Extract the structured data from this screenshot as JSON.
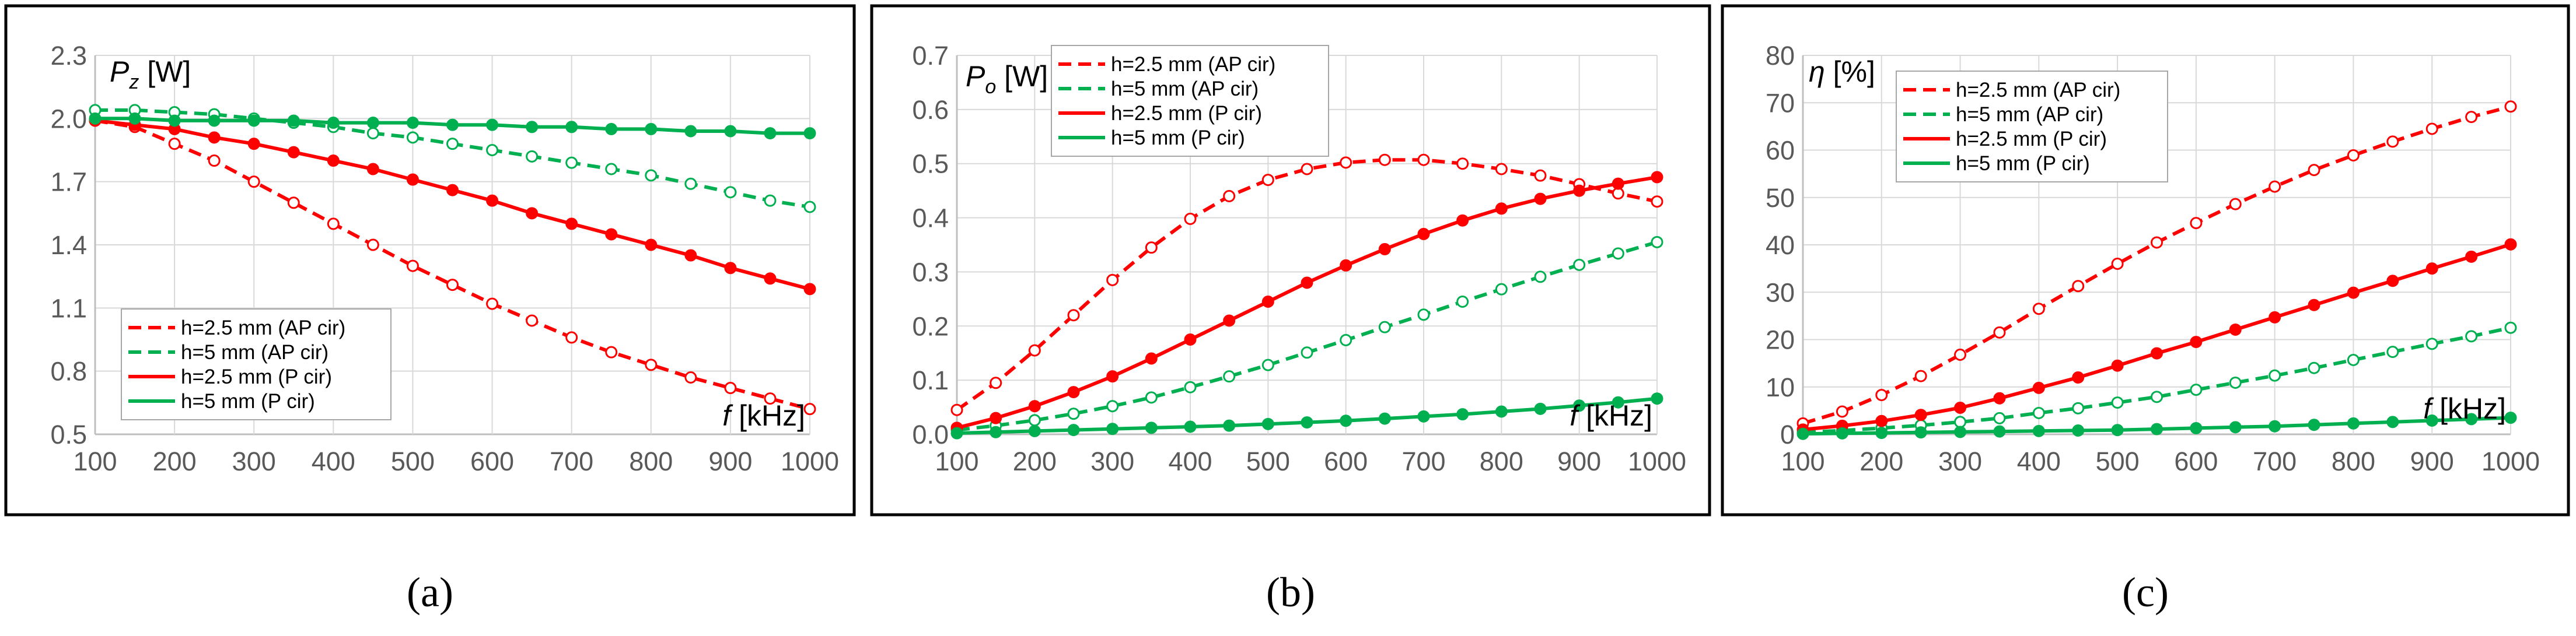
{
  "figure": {
    "captions": [
      "(a)",
      "(b)",
      "(c)"
    ]
  },
  "chart_data": [
    {
      "type": "line",
      "panel": "a",
      "ylabel_symbol": "P",
      "ylabel_sub": "z",
      "ylabel_unit": " [W]",
      "xlabel_symbol": "f",
      "xlabel_unit": " [kHz]",
      "ylim": [
        0.5,
        2.3
      ],
      "xlim": [
        100,
        1000
      ],
      "yticks": [
        "0.5",
        "0.8",
        "1.1",
        "1.4",
        "1.7",
        "2.0",
        "2.3"
      ],
      "xticks": [
        "100",
        "200",
        "300",
        "400",
        "500",
        "600",
        "700",
        "800",
        "900",
        "1000"
      ],
      "legend_position": "bottom-left",
      "x": [
        100,
        150,
        200,
        250,
        300,
        350,
        400,
        450,
        500,
        550,
        600,
        650,
        700,
        750,
        800,
        850,
        900,
        950,
        1000
      ],
      "series": [
        {
          "name": "h=2.5 mm (AP cir)",
          "color": "#ff0000",
          "dashed": true,
          "values": [
            1.99,
            1.96,
            1.88,
            1.8,
            1.7,
            1.6,
            1.5,
            1.4,
            1.3,
            1.21,
            1.12,
            1.04,
            0.96,
            0.89,
            0.83,
            0.77,
            0.72,
            0.67,
            0.62
          ]
        },
        {
          "name": "h=5 mm (AP cir)",
          "color": "#00b050",
          "dashed": true,
          "values": [
            2.04,
            2.04,
            2.03,
            2.02,
            2.0,
            1.98,
            1.96,
            1.93,
            1.91,
            1.88,
            1.85,
            1.82,
            1.79,
            1.76,
            1.73,
            1.69,
            1.65,
            1.61,
            1.58
          ]
        },
        {
          "name": "h=2.5 mm (P cir)",
          "color": "#ff0000",
          "dashed": false,
          "values": [
            1.99,
            1.97,
            1.95,
            1.91,
            1.88,
            1.84,
            1.8,
            1.76,
            1.71,
            1.66,
            1.61,
            1.55,
            1.5,
            1.45,
            1.4,
            1.35,
            1.29,
            1.24,
            1.19
          ]
        },
        {
          "name": "h=5 mm (P cir)",
          "color": "#00b050",
          "dashed": false,
          "values": [
            2.0,
            2.0,
            1.99,
            1.99,
            1.99,
            1.99,
            1.98,
            1.98,
            1.98,
            1.97,
            1.97,
            1.96,
            1.96,
            1.95,
            1.95,
            1.94,
            1.94,
            1.93,
            1.93
          ]
        }
      ]
    },
    {
      "type": "line",
      "panel": "b",
      "ylabel_symbol": "P",
      "ylabel_sub": "o",
      "ylabel_unit": " [W]",
      "xlabel_symbol": "f",
      "xlabel_unit": " [kHz]",
      "ylim": [
        0.0,
        0.7
      ],
      "xlim": [
        100,
        1000
      ],
      "yticks": [
        "0.0",
        "0.1",
        "0.2",
        "0.3",
        "0.4",
        "0.5",
        "0.6",
        "0.7"
      ],
      "xticks": [
        "100",
        "200",
        "300",
        "400",
        "500",
        "600",
        "700",
        "800",
        "900",
        "1000"
      ],
      "legend_position": "top-left",
      "x": [
        100,
        150,
        200,
        250,
        300,
        350,
        400,
        450,
        500,
        550,
        600,
        650,
        700,
        750,
        800,
        850,
        900,
        950,
        1000
      ],
      "series": [
        {
          "name": "h=2.5 mm (AP cir)",
          "color": "#ff0000",
          "dashed": true,
          "values": [
            0.045,
            0.095,
            0.155,
            0.22,
            0.285,
            0.345,
            0.398,
            0.44,
            0.47,
            0.49,
            0.502,
            0.507,
            0.507,
            0.5,
            0.49,
            0.478,
            0.462,
            0.445,
            0.43
          ]
        },
        {
          "name": "h=5 mm (AP cir)",
          "color": "#00b050",
          "dashed": true,
          "values": [
            0.008,
            0.016,
            0.026,
            0.038,
            0.052,
            0.068,
            0.087,
            0.107,
            0.128,
            0.151,
            0.174,
            0.198,
            0.221,
            0.245,
            0.268,
            0.291,
            0.313,
            0.334,
            0.355
          ]
        },
        {
          "name": "h=2.5 mm (P cir)",
          "color": "#ff0000",
          "dashed": false,
          "values": [
            0.012,
            0.03,
            0.052,
            0.078,
            0.107,
            0.14,
            0.175,
            0.21,
            0.245,
            0.28,
            0.312,
            0.342,
            0.37,
            0.395,
            0.417,
            0.435,
            0.45,
            0.463,
            0.475
          ]
        },
        {
          "name": "h=5 mm (P cir)",
          "color": "#00b050",
          "dashed": false,
          "values": [
            0.002,
            0.004,
            0.006,
            0.008,
            0.01,
            0.012,
            0.014,
            0.016,
            0.019,
            0.022,
            0.025,
            0.029,
            0.033,
            0.037,
            0.042,
            0.047,
            0.053,
            0.059,
            0.066
          ]
        }
      ]
    },
    {
      "type": "line",
      "panel": "c",
      "ylabel_symbol": "η",
      "ylabel_sub": "",
      "ylabel_unit": " [%]",
      "xlabel_symbol": "f",
      "xlabel_unit": " [kHz]",
      "ylim": [
        0,
        80
      ],
      "xlim": [
        100,
        1000
      ],
      "yticks": [
        "0",
        "10",
        "20",
        "30",
        "40",
        "50",
        "60",
        "70",
        "80"
      ],
      "xticks": [
        "100",
        "200",
        "300",
        "400",
        "500",
        "600",
        "700",
        "800",
        "900",
        "1000"
      ],
      "legend_position": "top-left",
      "x": [
        100,
        150,
        200,
        250,
        300,
        350,
        400,
        450,
        500,
        550,
        600,
        650,
        700,
        750,
        800,
        850,
        900,
        950,
        1000
      ],
      "series": [
        {
          "name": "h=2.5 mm (AP cir)",
          "color": "#ff0000",
          "dashed": true,
          "values": [
            2.3,
            4.8,
            8.3,
            12.3,
            16.8,
            21.5,
            26.5,
            31.3,
            36.0,
            40.5,
            44.6,
            48.6,
            52.3,
            55.8,
            58.9,
            61.8,
            64.5,
            67.0,
            69.2
          ]
        },
        {
          "name": "h=5 mm (AP cir)",
          "color": "#00b050",
          "dashed": true,
          "values": [
            0.4,
            0.8,
            1.3,
            1.9,
            2.6,
            3.4,
            4.5,
            5.5,
            6.7,
            7.9,
            9.4,
            10.9,
            12.4,
            14.0,
            15.7,
            17.4,
            19.1,
            20.7,
            22.5
          ]
        },
        {
          "name": "h=2.5 mm (P cir)",
          "color": "#ff0000",
          "dashed": false,
          "values": [
            1.0,
            1.8,
            2.8,
            4.1,
            5.6,
            7.6,
            9.8,
            12.0,
            14.5,
            17.1,
            19.5,
            22.1,
            24.7,
            27.3,
            29.9,
            32.4,
            35.0,
            37.5,
            40.1
          ]
        },
        {
          "name": "h=5 mm (P cir)",
          "color": "#00b050",
          "dashed": false,
          "values": [
            0.1,
            0.2,
            0.3,
            0.4,
            0.5,
            0.6,
            0.7,
            0.8,
            0.9,
            1.1,
            1.3,
            1.5,
            1.7,
            2.0,
            2.3,
            2.6,
            2.9,
            3.2,
            3.5
          ]
        }
      ]
    }
  ]
}
